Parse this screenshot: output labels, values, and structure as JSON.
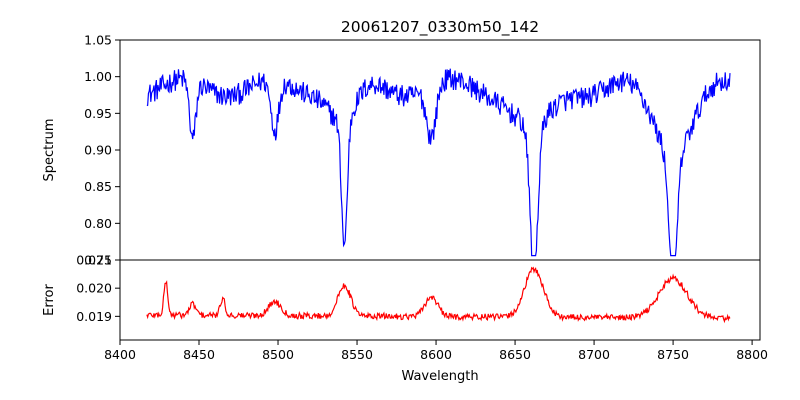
{
  "chart_data": {
    "type": "line",
    "title": "20061207_0330m50_142",
    "xlabel": "Wavelength",
    "xlim": [
      8400,
      8805
    ],
    "xticks": [
      8400,
      8450,
      8500,
      8550,
      8600,
      8650,
      8700,
      8750,
      8800
    ],
    "xtick_labels": [
      "8400",
      "8450",
      "8500",
      "8550",
      "8600",
      "8650",
      "8700",
      "8750",
      "8800"
    ],
    "panels": [
      {
        "name": "spectrum",
        "ylabel": "Spectrum",
        "ylim": [
          0.75,
          1.05
        ],
        "yticks": [
          0.75,
          0.8,
          0.85,
          0.9,
          0.95,
          1.0,
          1.05
        ],
        "ytick_labels": [
          "0.75",
          "0.80",
          "0.85",
          "0.90",
          "0.95",
          "1.00",
          "1.05"
        ],
        "color": "#0000ff",
        "x_range": [
          8417,
          8786
        ],
        "baseline": 0.985,
        "noise": 0.03,
        "lines": [
          {
            "center": 8446,
            "depth": 0.08,
            "width": 2.0
          },
          {
            "center": 8498,
            "depth": 0.07,
            "width": 2.5
          },
          {
            "center": 8542,
            "depth": 0.17,
            "width": 1.8
          },
          {
            "center": 8542,
            "depth": 0.05,
            "width": 8.0
          },
          {
            "center": 8597,
            "depth": 0.07,
            "width": 3.0
          },
          {
            "center": 8662,
            "depth": 0.2,
            "width": 2.5
          },
          {
            "center": 8662,
            "depth": 0.06,
            "width": 12.0
          },
          {
            "center": 8750,
            "depth": 0.18,
            "width": 2.5
          },
          {
            "center": 8750,
            "depth": 0.08,
            "width": 12.0
          }
        ]
      },
      {
        "name": "error",
        "ylabel": "Error",
        "ylim": [
          0.01816,
          0.021
        ],
        "yticks": [
          0.019,
          0.02,
          0.021
        ],
        "ytick_labels": [
          "0.019",
          "0.020",
          "0.021"
        ],
        "color": "#ff0000",
        "x_range": [
          8417,
          8786
        ],
        "baseline": 0.01905,
        "noise": 0.00022,
        "peaks": [
          {
            "center": 8429,
            "height": 0.0012,
            "width": 1.2
          },
          {
            "center": 8446,
            "height": 0.0004,
            "width": 2.0
          },
          {
            "center": 8465,
            "height": 0.0006,
            "width": 1.5
          },
          {
            "center": 8498,
            "height": 0.0005,
            "width": 4.0
          },
          {
            "center": 8542,
            "height": 0.0011,
            "width": 4.0
          },
          {
            "center": 8597,
            "height": 0.0007,
            "width": 4.0
          },
          {
            "center": 8662,
            "height": 0.0017,
            "width": 6.0
          },
          {
            "center": 8750,
            "height": 0.0014,
            "width": 9.0
          }
        ]
      }
    ]
  }
}
